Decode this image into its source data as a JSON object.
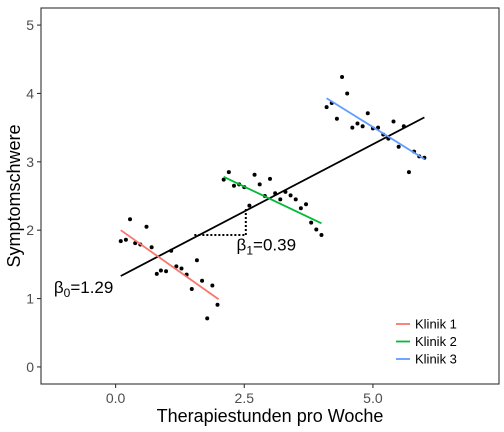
{
  "chart_data": {
    "type": "scatter",
    "title": "",
    "xlabel": "Therapiestunden pro Woche",
    "ylabel": "Symptomschwere",
    "xlim": [
      -1.45,
      7.45
    ],
    "ylim": [
      -0.25,
      5.25
    ],
    "x_ticks": [
      0,
      2.5,
      5
    ],
    "x_tick_labels": [
      "0.0",
      "2.5",
      "5.0"
    ],
    "y_ticks": [
      0,
      1,
      2,
      3,
      4,
      5
    ],
    "y_tick_labels": [
      "0",
      "1",
      "2",
      "3",
      "4",
      "5"
    ],
    "grid": false,
    "legend_position": "bottom-right",
    "points": [
      {
        "x": 0.1,
        "y": 1.84
      },
      {
        "x": 0.2,
        "y": 1.86
      },
      {
        "x": 0.28,
        "y": 2.16
      },
      {
        "x": 0.38,
        "y": 1.81
      },
      {
        "x": 0.48,
        "y": 1.79
      },
      {
        "x": 0.6,
        "y": 2.05
      },
      {
        "x": 0.7,
        "y": 1.75
      },
      {
        "x": 0.8,
        "y": 1.36
      },
      {
        "x": 0.88,
        "y": 1.41
      },
      {
        "x": 0.98,
        "y": 1.4
      },
      {
        "x": 1.08,
        "y": 1.7
      },
      {
        "x": 1.18,
        "y": 1.47
      },
      {
        "x": 1.28,
        "y": 1.44
      },
      {
        "x": 1.38,
        "y": 1.35
      },
      {
        "x": 1.48,
        "y": 1.14
      },
      {
        "x": 1.58,
        "y": 1.56
      },
      {
        "x": 1.68,
        "y": 1.26
      },
      {
        "x": 1.78,
        "y": 0.71
      },
      {
        "x": 1.88,
        "y": 1.19
      },
      {
        "x": 1.98,
        "y": 0.91
      },
      {
        "x": 2.1,
        "y": 2.74
      },
      {
        "x": 2.2,
        "y": 2.85
      },
      {
        "x": 2.3,
        "y": 2.65
      },
      {
        "x": 2.4,
        "y": 2.67
      },
      {
        "x": 2.5,
        "y": 2.63
      },
      {
        "x": 2.6,
        "y": 2.36
      },
      {
        "x": 2.7,
        "y": 2.81
      },
      {
        "x": 2.8,
        "y": 2.67
      },
      {
        "x": 2.9,
        "y": 2.5
      },
      {
        "x": 3.0,
        "y": 2.75
      },
      {
        "x": 3.1,
        "y": 2.54
      },
      {
        "x": 3.2,
        "y": 2.45
      },
      {
        "x": 3.3,
        "y": 2.56
      },
      {
        "x": 3.4,
        "y": 2.51
      },
      {
        "x": 3.5,
        "y": 2.45
      },
      {
        "x": 3.6,
        "y": 2.32
      },
      {
        "x": 3.7,
        "y": 2.38
      },
      {
        "x": 3.8,
        "y": 2.11
      },
      {
        "x": 3.9,
        "y": 2.01
      },
      {
        "x": 4.0,
        "y": 1.93
      },
      {
        "x": 4.1,
        "y": 3.8
      },
      {
        "x": 4.2,
        "y": 3.86
      },
      {
        "x": 4.3,
        "y": 3.63
      },
      {
        "x": 4.4,
        "y": 4.24
      },
      {
        "x": 4.5,
        "y": 4.0
      },
      {
        "x": 4.6,
        "y": 3.5
      },
      {
        "x": 4.7,
        "y": 3.56
      },
      {
        "x": 4.8,
        "y": 3.52
      },
      {
        "x": 4.9,
        "y": 3.71
      },
      {
        "x": 5.0,
        "y": 3.49
      },
      {
        "x": 5.1,
        "y": 3.5
      },
      {
        "x": 5.2,
        "y": 3.4
      },
      {
        "x": 5.3,
        "y": 3.34
      },
      {
        "x": 5.4,
        "y": 3.59
      },
      {
        "x": 5.5,
        "y": 3.22
      },
      {
        "x": 5.6,
        "y": 3.52
      },
      {
        "x": 5.7,
        "y": 2.85
      },
      {
        "x": 5.8,
        "y": 3.15
      },
      {
        "x": 5.9,
        "y": 3.08
      },
      {
        "x": 6.0,
        "y": 3.06
      }
    ],
    "overall_fit": {
      "x": [
        0.1,
        6.0
      ],
      "y": [
        1.33,
        3.65
      ],
      "color": "#000000"
    },
    "series": [
      {
        "name": "Klinik 1",
        "color": "#f8766d",
        "x": [
          0.1,
          2.0
        ],
        "y": [
          2.0,
          0.99
        ]
      },
      {
        "name": "Klinik 2",
        "color": "#00ba38",
        "x": [
          2.1,
          4.0
        ],
        "y": [
          2.78,
          2.1
        ]
      },
      {
        "name": "Klinik 3",
        "color": "#619cff",
        "x": [
          4.1,
          6.0
        ],
        "y": [
          3.93,
          3.04
        ]
      }
    ],
    "slope_triangle": {
      "x_start": 1.53,
      "x_end": 2.53,
      "y_start": 1.93,
      "y_end": 2.32
    },
    "annotations": {
      "beta0": {
        "symbol": "β",
        "sub": "0",
        "value": "=1.29",
        "x": -1.2,
        "y": 1.08
      },
      "beta1": {
        "symbol": "β",
        "sub": "1",
        "value": "=0.39",
        "x": 2.35,
        "y": 1.7
      }
    }
  }
}
